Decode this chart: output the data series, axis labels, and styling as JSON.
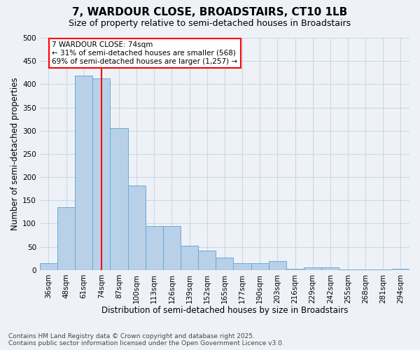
{
  "title": "7, WARDOUR CLOSE, BROADSTAIRS, CT10 1LB",
  "subtitle": "Size of property relative to semi-detached houses in Broadstairs",
  "xlabel": "Distribution of semi-detached houses by size in Broadstairs",
  "ylabel": "Number of semi-detached properties",
  "bar_labels": [
    "36sqm",
    "48sqm",
    "61sqm",
    "74sqm",
    "87sqm",
    "100sqm",
    "113sqm",
    "126sqm",
    "139sqm",
    "152sqm",
    "165sqm",
    "177sqm",
    "190sqm",
    "203sqm",
    "216sqm",
    "229sqm",
    "242sqm",
    "255sqm",
    "268sqm",
    "281sqm",
    "294sqm"
  ],
  "bar_values": [
    15,
    135,
    418,
    412,
    305,
    182,
    95,
    95,
    53,
    42,
    27,
    15,
    15,
    20,
    3,
    6,
    6,
    2,
    1,
    1,
    3
  ],
  "bar_color": "#b8d0e8",
  "bar_edge_color": "#6aaad4",
  "vline_x_index": 3,
  "vline_color": "red",
  "annotation_text": "7 WARDOUR CLOSE: 74sqm\n← 31% of semi-detached houses are smaller (568)\n69% of semi-detached houses are larger (1,257) →",
  "annotation_box_facecolor": "white",
  "annotation_box_edgecolor": "red",
  "ylim": [
    0,
    500
  ],
  "yticks": [
    0,
    50,
    100,
    150,
    200,
    250,
    300,
    350,
    400,
    450,
    500
  ],
  "grid_color": "#c8d8e8",
  "background_color": "#eef2f7",
  "footer": "Contains HM Land Registry data © Crown copyright and database right 2025.\nContains public sector information licensed under the Open Government Licence v3.0.",
  "title_fontsize": 11,
  "subtitle_fontsize": 9,
  "axis_label_fontsize": 8.5,
  "tick_fontsize": 7.5,
  "annotation_fontsize": 7.5,
  "footer_fontsize": 6.5
}
